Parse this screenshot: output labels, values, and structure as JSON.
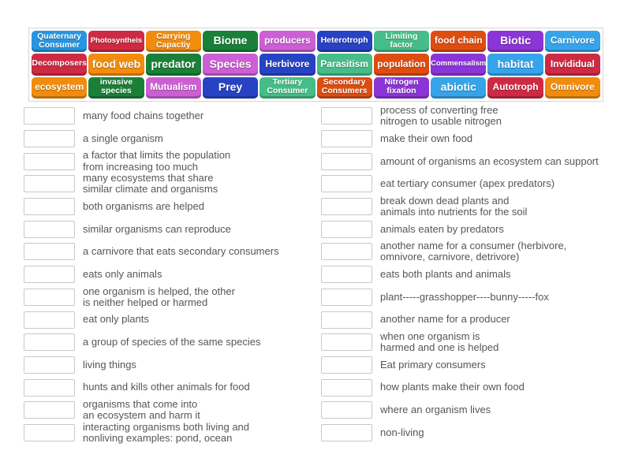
{
  "palette": {
    "blue": "#2795e0",
    "crimson": "#ce2a44",
    "orange": "#f18c0e",
    "green": "#1a8038",
    "orchid": "#cc5fd4",
    "navy": "#2842c4",
    "seafoam": "#46bd89",
    "darkorange": "#de4d10",
    "violet": "#8c35d6",
    "lightblue": "#36a4ea"
  },
  "word_bank": {
    "tiles": [
      {
        "label": "Quaternary\nConsumer",
        "color": "blue",
        "size": "sm"
      },
      {
        "label": "Photosyntheis",
        "color": "crimson",
        "size": "xs"
      },
      {
        "label": "Carrying\nCapactiy",
        "color": "orange",
        "size": "sm"
      },
      {
        "label": "Biome",
        "color": "green",
        "size": "lg"
      },
      {
        "label": "producers",
        "color": "orchid",
        "size": "md"
      },
      {
        "label": "Heterotroph",
        "color": "navy",
        "size": "sm"
      },
      {
        "label": "Limiting\nfactor",
        "color": "seafoam",
        "size": "sm"
      },
      {
        "label": "food chain",
        "color": "darkorange",
        "size": "md"
      },
      {
        "label": "Biotic",
        "color": "violet",
        "size": "lg"
      },
      {
        "label": "Carnivore",
        "color": "lightblue",
        "size": "md"
      },
      {
        "label": "Decomposers",
        "color": "crimson",
        "size": "sm"
      },
      {
        "label": "food web",
        "color": "orange",
        "size": "lg"
      },
      {
        "label": "predator",
        "color": "green",
        "size": "lg"
      },
      {
        "label": "Species",
        "color": "orchid",
        "size": "lg"
      },
      {
        "label": "Herbivore",
        "color": "navy",
        "size": "md"
      },
      {
        "label": "Parasitism",
        "color": "seafoam",
        "size": "md"
      },
      {
        "label": "population",
        "color": "darkorange",
        "size": "md"
      },
      {
        "label": "Commensalism",
        "color": "violet",
        "size": "xs"
      },
      {
        "label": "habitat",
        "color": "lightblue",
        "size": "lg"
      },
      {
        "label": "Invididual",
        "color": "crimson",
        "size": "md"
      },
      {
        "label": "ecosystem",
        "color": "orange",
        "size": "md"
      },
      {
        "label": "invasive\nspecies",
        "color": "green",
        "size": "sm"
      },
      {
        "label": "Mutualism",
        "color": "orchid",
        "size": "md"
      },
      {
        "label": "Prey",
        "color": "navy",
        "size": "lg"
      },
      {
        "label": "Tertiary\nConsumer",
        "color": "seafoam",
        "size": "sm"
      },
      {
        "label": "Secondary\nConsumers",
        "color": "darkorange",
        "size": "sm"
      },
      {
        "label": "Nitrogen\nfixation",
        "color": "violet",
        "size": "sm"
      },
      {
        "label": "abiotic",
        "color": "lightblue",
        "size": "lg"
      },
      {
        "label": "Autotroph",
        "color": "crimson",
        "size": "md"
      },
      {
        "label": "Omnivore",
        "color": "orange",
        "size": "md"
      }
    ]
  },
  "definitions": {
    "left": [
      "many food chains together",
      "a single organism",
      "a factor that limits the population\nfrom increasing too much",
      "many ecosystems that share\nsimilar climate and organisms",
      "both organisms are helped",
      "similar organisms can reproduce",
      "a carnivore that eats secondary consumers",
      "eats only animals",
      "one organism is helped, the other\nis neither helped or harmed",
      "eat only plants",
      "a group of species of the same species",
      "living things",
      "hunts and kills other animals for food",
      "organisms that come into\nan ecosystem and harm it",
      "interacting organisms both living and\nnonliving examples: pond, ocean"
    ],
    "right": [
      "process of converting free\nnitrogen to usable nitrogen",
      "make their own food",
      "amount of organisms an ecosystem can support",
      "eat tertiary consumer (apex predators)",
      "break down dead plants and\nanimals into nutrients for the soil",
      "animals eaten by predators",
      "another name for a consumer (herbivore,\nomnivore, carnivore, detrivore)",
      "eats both plants and animals",
      "plant-----grasshopper----bunny-----fox",
      "another name for a producer",
      "when one organism is\nharmed and one is helped",
      "Eat primary consumers",
      "how plants make their own food",
      "where an organism lives",
      "non-living"
    ]
  }
}
